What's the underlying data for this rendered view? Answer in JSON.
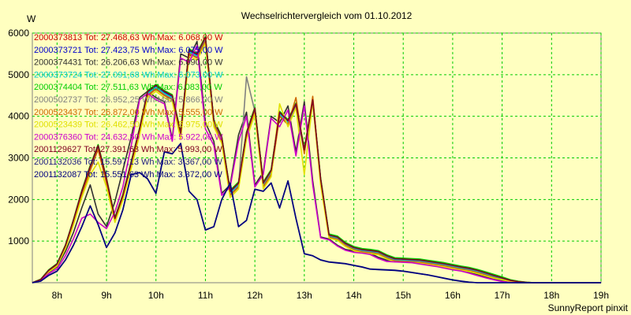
{
  "chart_data": {
    "type": "line",
    "title": "Wechselrichtervergleich vom 01.10.2012",
    "ylabel": "W",
    "footer": "SunnyReport pinxit",
    "xlim": [
      7.5,
      19.0
    ],
    "ylim": [
      0,
      6000
    ],
    "grid": true,
    "y_ticks": [
      1000,
      2000,
      3000,
      4000,
      5000,
      6000
    ],
    "x_ticks": [
      {
        "value": 8,
        "label": "8h"
      },
      {
        "value": 9,
        "label": "9h"
      },
      {
        "value": 10,
        "label": "10h"
      },
      {
        "value": 11,
        "label": "11h"
      },
      {
        "value": 12,
        "label": "12h"
      },
      {
        "value": 13,
        "label": "13h"
      },
      {
        "value": 14,
        "label": "14h"
      },
      {
        "value": 15,
        "label": "15h"
      },
      {
        "value": 16,
        "label": "16h"
      },
      {
        "value": 17,
        "label": "17h"
      },
      {
        "value": 18,
        "label": "18h"
      },
      {
        "value": 19,
        "label": "19h"
      }
    ],
    "x": [
      7.5,
      7.67,
      7.83,
      8.0,
      8.17,
      8.33,
      8.5,
      8.67,
      8.83,
      9.0,
      9.17,
      9.33,
      9.5,
      9.67,
      9.83,
      10.0,
      10.17,
      10.33,
      10.5,
      10.67,
      10.83,
      11.0,
      11.17,
      11.33,
      11.5,
      11.67,
      11.83,
      12.0,
      12.17,
      12.33,
      12.5,
      12.67,
      12.83,
      13.0,
      13.17,
      13.33,
      13.5,
      13.67,
      13.83,
      14.0,
      14.17,
      14.33,
      14.5,
      14.67,
      14.83,
      15.0,
      15.17,
      15.33,
      15.5,
      15.67,
      15.83,
      16.0,
      16.17,
      16.33,
      16.5,
      16.67,
      16.83,
      17.0,
      17.17,
      17.33,
      17.5,
      17.67,
      17.83,
      18.0,
      18.17,
      18.33,
      18.5,
      18.67,
      18.83,
      19.0
    ],
    "series": [
      {
        "name": "2000373813 Tot: 27.468,63 Wh Max: 6.068,00 W",
        "color": "#cc0000",
        "values": [
          0,
          80,
          300,
          450,
          900,
          1500,
          2200,
          2800,
          3300,
          2500,
          1550,
          2100,
          2900,
          3700,
          4600,
          4750,
          4600,
          4500,
          3600,
          5600,
          5500,
          5900,
          3900,
          3500,
          2200,
          2400,
          3600,
          4200,
          2400,
          2700,
          4100,
          3900,
          4300,
          3200,
          4400,
          2500,
          1150,
          1100,
          950,
          850,
          800,
          780,
          750,
          650,
          580,
          570,
          560,
          550,
          520,
          490,
          460,
          420,
          380,
          350,
          300,
          240,
          180,
          120,
          60,
          30,
          10,
          0,
          0,
          0,
          0,
          0,
          0,
          0,
          0,
          0
        ]
      },
      {
        "name": "2000373721 Tot: 27.423,75 Wh Max: 6.075,00 W",
        "color": "#0000cc",
        "values": [
          0,
          70,
          290,
          440,
          890,
          1480,
          2180,
          2780,
          3280,
          2480,
          1530,
          2080,
          2880,
          3680,
          4580,
          4730,
          4580,
          4480,
          3580,
          5580,
          5480,
          5880,
          3880,
          3480,
          2180,
          2380,
          3580,
          4180,
          2380,
          2680,
          4080,
          3880,
          4280,
          3180,
          4380,
          2480,
          1130,
          1080,
          930,
          830,
          780,
          760,
          730,
          630,
          560,
          550,
          540,
          530,
          500,
          470,
          440,
          400,
          360,
          330,
          280,
          220,
          160,
          100,
          50,
          20,
          5,
          0,
          0,
          0,
          0,
          0,
          0,
          0,
          0,
          0
        ]
      },
      {
        "name": "2000374431 Tot: 26.206,63 Wh Max: 6.090,00 W",
        "color": "#303030",
        "values": [
          0,
          60,
          250,
          380,
          750,
          1200,
          1800,
          2350,
          1650,
          1350,
          1950,
          2700,
          3500,
          4450,
          4600,
          4450,
          4350,
          3450,
          5500,
          5400,
          5800,
          3850,
          3400,
          2150,
          2350,
          3550,
          4100,
          2350,
          2650,
          4000,
          3850,
          4250,
          3150,
          4350,
          2450,
          1100,
          1050,
          900,
          800,
          760,
          740,
          710,
          610,
          540,
          530,
          520,
          510,
          480,
          450,
          420,
          380,
          340,
          310,
          260,
          200,
          140,
          90,
          40,
          15,
          0,
          0,
          0,
          0,
          0,
          0,
          0,
          0,
          0,
          0,
          0
        ]
      },
      {
        "name": "2000373724 Tot: 27.091,68 Wh Max: 6.073,00 W",
        "color": "#00cccc",
        "values": [
          0,
          75,
          295,
          445,
          880,
          1470,
          2150,
          2750,
          3250,
          2450,
          1520,
          2060,
          2850,
          3650,
          4550,
          4700,
          4550,
          4450,
          3550,
          5550,
          5450,
          5850,
          3850,
          3450,
          2150,
          2350,
          3550,
          4150,
          2350,
          2650,
          4050,
          3850,
          4250,
          3150,
          4350,
          2450,
          1120,
          1070,
          920,
          820,
          770,
          750,
          720,
          620,
          550,
          540,
          530,
          520,
          490,
          460,
          430,
          390,
          350,
          320,
          270,
          210,
          150,
          95,
          45,
          18,
          4,
          0,
          0,
          0,
          0,
          0,
          0,
          0,
          0,
          0
        ]
      },
      {
        "name": "2000374404 Tot: 27.511,63 Wh Max: 6.083,00 W",
        "color": "#00cc00",
        "values": [
          0,
          85,
          310,
          460,
          910,
          1510,
          2220,
          2820,
          3320,
          2520,
          1570,
          2120,
          2920,
          3720,
          4620,
          4770,
          4620,
          4520,
          3620,
          5620,
          5520,
          5920,
          3920,
          3520,
          2220,
          2420,
          3620,
          4220,
          2420,
          2720,
          4120,
          3920,
          4320,
          3220,
          4420,
          2520,
          1170,
          1120,
          970,
          870,
          820,
          800,
          770,
          670,
          600,
          590,
          580,
          570,
          540,
          510,
          480,
          440,
          400,
          370,
          320,
          260,
          200,
          140,
          70,
          35,
          12,
          0,
          0,
          0,
          0,
          0,
          0,
          0,
          0,
          0
        ]
      },
      {
        "name": "2000502737 Tot: 26.952,25 Wh Max: 5.866,00 W",
        "color": "#808080",
        "values": [
          0,
          70,
          280,
          420,
          860,
          1440,
          2120,
          2720,
          3220,
          2420,
          1500,
          2040,
          2820,
          3620,
          4520,
          4670,
          4520,
          4420,
          3520,
          5520,
          5420,
          5820,
          3820,
          3420,
          2120,
          2320,
          4950,
          4120,
          2320,
          2620,
          4020,
          3820,
          4220,
          3120,
          4320,
          2420,
          1100,
          1050,
          900,
          800,
          750,
          730,
          700,
          600,
          530,
          520,
          510,
          500,
          470,
          440,
          410,
          370,
          330,
          300,
          250,
          190,
          130,
          80,
          35,
          12,
          2,
          0,
          0,
          0,
          0,
          0,
          0,
          0,
          0,
          0
        ]
      },
      {
        "name": "2000523437 Tot: 26.872,00 Wh Max: 5.555,00 W",
        "color": "#cc6600",
        "values": [
          0,
          65,
          270,
          410,
          840,
          1420,
          2100,
          2700,
          3200,
          2400,
          1480,
          2020,
          2800,
          3600,
          4500,
          4650,
          4500,
          4400,
          3500,
          5500,
          5400,
          5800,
          3800,
          3400,
          2100,
          2300,
          3500,
          4100,
          2300,
          2600,
          4000,
          3800,
          4450,
          3100,
          4480,
          2400,
          1090,
          1040,
          890,
          790,
          740,
          720,
          690,
          590,
          520,
          510,
          500,
          490,
          460,
          430,
          400,
          360,
          320,
          290,
          240,
          180,
          120,
          75,
          30,
          10,
          0,
          0,
          0,
          0,
          0,
          0,
          0,
          0,
          0,
          0
        ]
      },
      {
        "name": "2000523439 Tot: 26.462,50 Wh Max: 5.975,00 W",
        "color": "#e0e000",
        "values": [
          0,
          60,
          260,
          400,
          820,
          1380,
          2050,
          2600,
          2900,
          2300,
          1450,
          1980,
          2750,
          3550,
          4450,
          4600,
          4450,
          4350,
          3450,
          5450,
          5350,
          5750,
          3750,
          3350,
          2050,
          2250,
          3450,
          4050,
          2250,
          2550,
          4300,
          3750,
          4200,
          2600,
          4350,
          2350,
          1070,
          1020,
          870,
          770,
          720,
          700,
          670,
          570,
          500,
          490,
          480,
          470,
          440,
          410,
          380,
          340,
          300,
          270,
          220,
          160,
          110,
          70,
          28,
          8,
          0,
          0,
          0,
          0,
          0,
          0,
          0,
          0,
          0,
          0
        ]
      },
      {
        "name": "2000376360 Tot: 24.632,50 Wh Max: 5.922,00 W",
        "color": "#cc00cc",
        "values": [
          0,
          50,
          220,
          330,
          650,
          1050,
          1550,
          1650,
          1450,
          1300,
          1700,
          2300,
          3300,
          4400,
          4550,
          4400,
          4300,
          3400,
          5400,
          5300,
          5700,
          3700,
          3300,
          2100,
          2300,
          3400,
          4000,
          2300,
          2600,
          3950,
          3750,
          4150,
          3050,
          4250,
          2350,
          1080,
          1030,
          880,
          780,
          730,
          710,
          680,
          580,
          510,
          500,
          490,
          480,
          450,
          420,
          390,
          350,
          310,
          280,
          230,
          170,
          115,
          70,
          28,
          8,
          0,
          0,
          0,
          0,
          0,
          0,
          0,
          0,
          0,
          0,
          0
        ]
      },
      {
        "name": "2001129627 Tot: 27.391,63 Wh Max: 5.993,00 W",
        "color": "#800020",
        "values": [
          0,
          78,
          298,
          448,
          895,
          1495,
          2195,
          2795,
          3295,
          2495,
          1545,
          2095,
          2895,
          3695,
          4595,
          4745,
          4595,
          4495,
          3595,
          5595,
          5495,
          5895,
          3895,
          3495,
          2195,
          2395,
          3595,
          4195,
          2395,
          2695,
          4095,
          3895,
          4295,
          3195,
          4395,
          2495,
          1145,
          1095,
          945,
          845,
          795,
          775,
          745,
          645,
          575,
          565,
          555,
          545,
          515,
          485,
          455,
          415,
          375,
          345,
          295,
          235,
          175,
          115,
          55,
          25,
          8,
          0,
          0,
          0,
          0,
          0,
          0,
          0,
          0,
          0
        ]
      },
      {
        "name": "2001132036 Tot: 15.597,13 Wh Max: 3.367,00 W",
        "color": "#202080",
        "values": [
          0,
          40,
          180,
          280,
          550,
          900,
          1350,
          1850,
          1400,
          850,
          1200,
          1750,
          2600,
          2650,
          2500,
          2150,
          3150,
          3100,
          3350,
          2200,
          2000,
          1270,
          1350,
          2000,
          2400,
          1350,
          1500,
          2250,
          2200,
          2400,
          1800,
          2450,
          1550,
          700,
          650,
          550,
          500,
          480,
          460,
          420,
          380,
          330,
          320,
          310,
          300,
          280,
          250,
          220,
          190,
          150,
          110,
          70,
          40,
          15,
          0,
          0,
          0,
          0,
          0,
          0,
          0,
          0,
          0,
          0,
          0,
          0,
          0,
          0,
          0,
          0
        ]
      },
      {
        "name": "2001132087 Tot: 15.551,63 Wh Max: 3.372,00 W",
        "color": "#000080",
        "values": [
          0,
          38,
          175,
          275,
          545,
          895,
          1345,
          1845,
          1395,
          845,
          1195,
          1745,
          2595,
          2645,
          2495,
          2145,
          3145,
          3095,
          3345,
          2195,
          1995,
          1265,
          1345,
          1995,
          2395,
          1345,
          1495,
          2245,
          2195,
          2395,
          1795,
          2445,
          1545,
          695,
          645,
          545,
          495,
          475,
          455,
          415,
          375,
          325,
          315,
          305,
          295,
          275,
          245,
          215,
          185,
          145,
          105,
          65,
          35,
          12,
          0,
          0,
          0,
          0,
          0,
          0,
          0,
          0,
          0,
          0,
          0,
          0,
          0,
          0,
          0,
          0
        ]
      }
    ]
  }
}
